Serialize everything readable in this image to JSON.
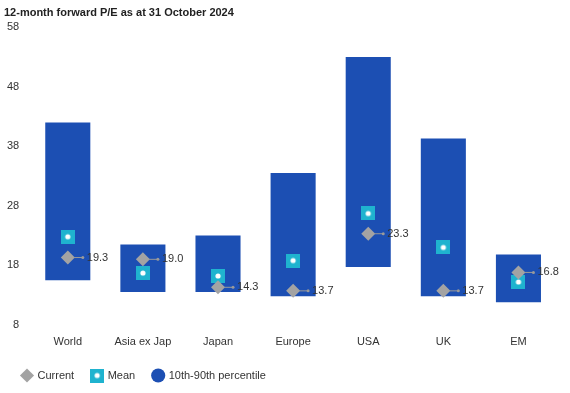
{
  "chart_data": {
    "type": "bar",
    "title": "12-month forward P/E as at 31 October 2024",
    "categories": [
      "World",
      "Asia ex Jap",
      "Japan",
      "Europe",
      "USA",
      "UK",
      "EM"
    ],
    "series": [
      {
        "name": "10th-90th percentile",
        "type": "bar",
        "color": "#1c4fb3",
        "values": [
          [
            15.5,
            42
          ],
          [
            13.5,
            21.5
          ],
          [
            13.5,
            23
          ],
          [
            12.8,
            33.5
          ],
          [
            17.7,
            53
          ],
          [
            12.8,
            39.3
          ],
          [
            11.8,
            19.8
          ]
        ]
      },
      {
        "name": "Mean",
        "type": "scatter",
        "marker": "square",
        "color": "#1fb3cf",
        "values": [
          22.8,
          16.7,
          16.2,
          18.8,
          26.7,
          21.0,
          15.2
        ]
      },
      {
        "name": "Current",
        "type": "scatter",
        "marker": "diamond",
        "color": "#a3a3a3",
        "values": [
          19.3,
          19.0,
          14.3,
          13.7,
          23.3,
          13.7,
          16.8
        ],
        "data_labels": true,
        "value_labels": [
          "19.3",
          "19.0",
          "14.3",
          "13.7",
          "23.3",
          "13.7",
          "16.8"
        ]
      }
    ],
    "ylim": [
      8,
      58
    ],
    "yticks": [
      8,
      18,
      28,
      38,
      48,
      58
    ],
    "grid": false,
    "legend": "bottom"
  }
}
